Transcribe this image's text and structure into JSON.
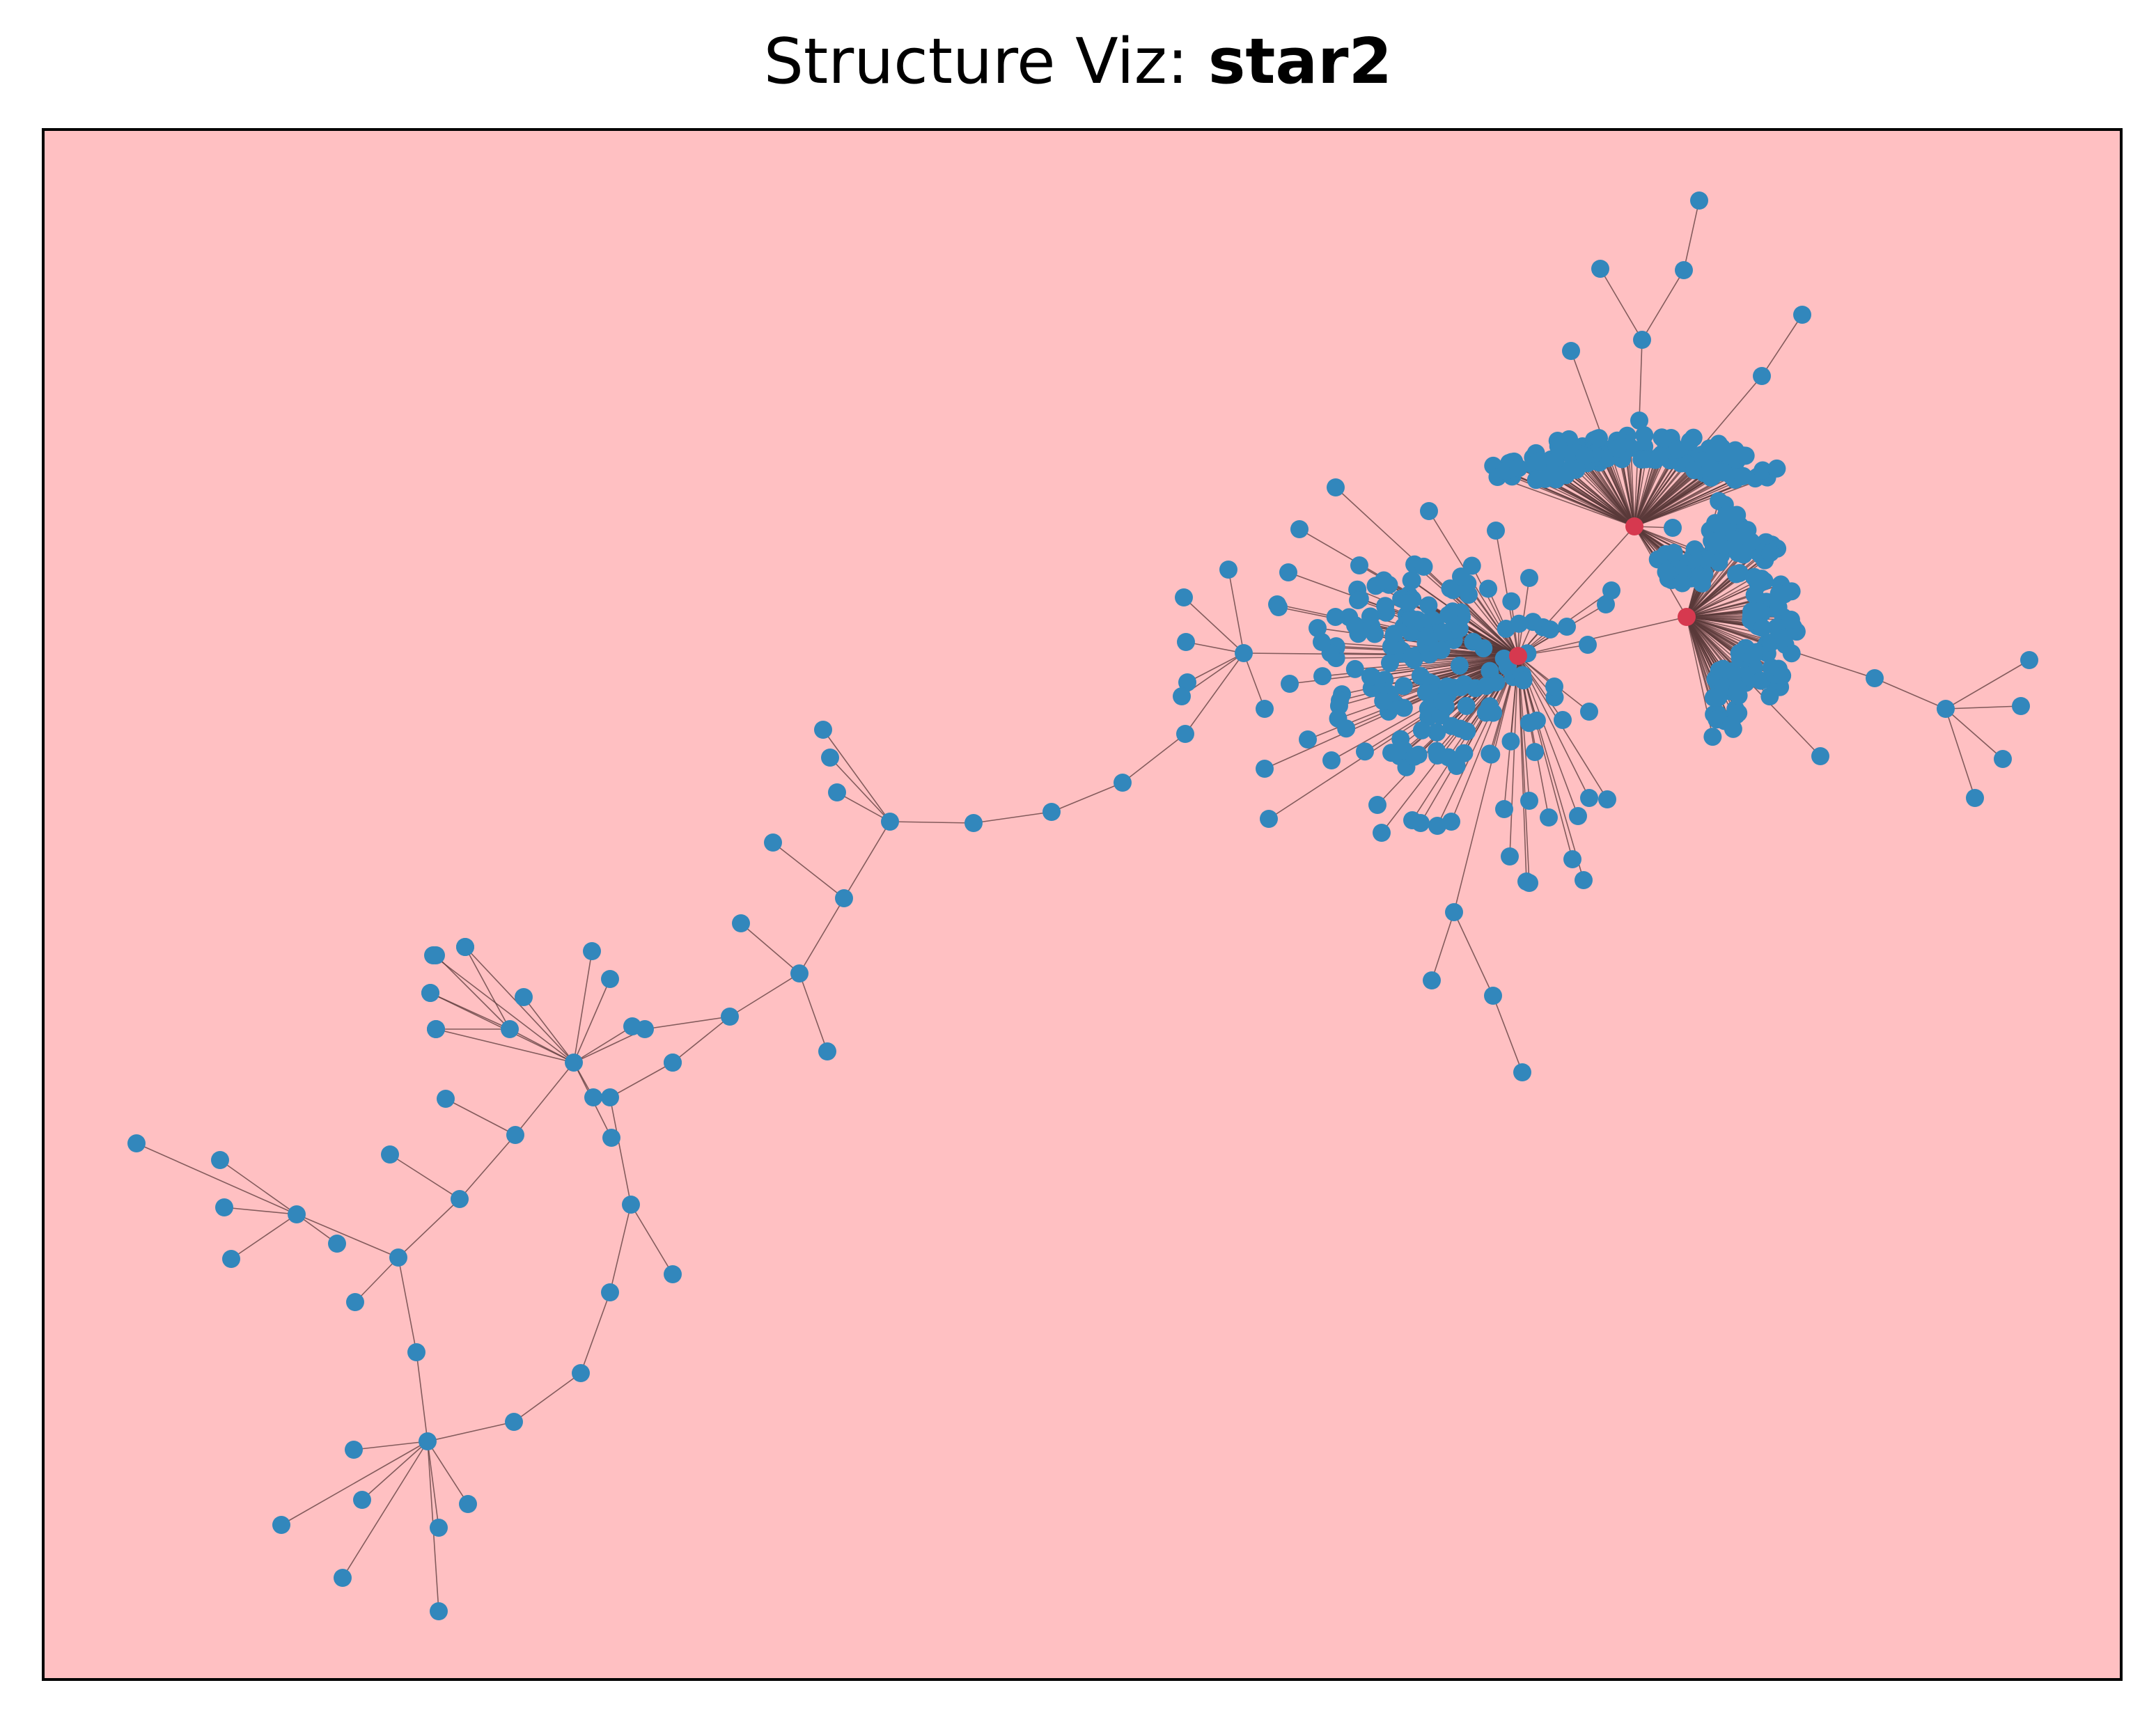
{
  "title": {
    "prefix": "Structure Viz: ",
    "name": "star2"
  },
  "colors": {
    "background": "#ffc0c2",
    "frame": "#000000",
    "node": "#3287bc",
    "hub": "#d6394f",
    "edge": "#5a3a3a"
  }
}
